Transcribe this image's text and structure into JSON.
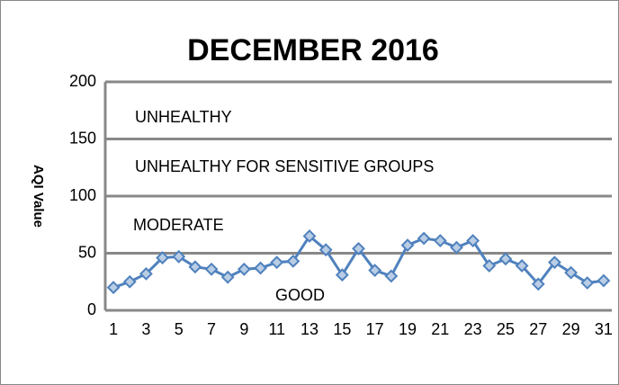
{
  "chart_data": {
    "type": "line",
    "title": "DECEMBER 2016",
    "y_label": "AQI Value",
    "categories": [
      "1",
      null,
      "3",
      null,
      "5",
      null,
      "7",
      null,
      "9",
      null,
      "11",
      null,
      "13",
      null,
      "15",
      null,
      "17",
      null,
      "19",
      null,
      "21",
      null,
      "23",
      null,
      "25",
      null,
      "27",
      null,
      "29",
      null,
      "31"
    ],
    "series": [
      {
        "name": "AQI Value",
        "color": "#4f81bd",
        "values": [
          20,
          25,
          32,
          46,
          47,
          38,
          36,
          29,
          36,
          37,
          42,
          43,
          65,
          53,
          31,
          54,
          35,
          30,
          57,
          63,
          61,
          55,
          61,
          39,
          45,
          39,
          23,
          42,
          33,
          24,
          26
        ]
      }
    ],
    "ylim": [
      0,
      200
    ],
    "yticks": [
      0,
      50,
      100,
      150,
      200
    ],
    "grid": true,
    "annotations": [
      "UNHEALTHY",
      "UNHEALTHY FOR SENSITIVE GROUPS",
      "MODERATE",
      "GOOD"
    ]
  }
}
